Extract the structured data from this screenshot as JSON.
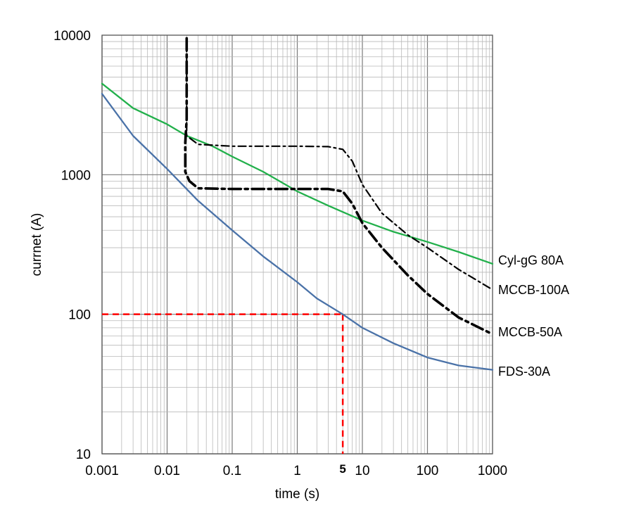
{
  "chart_data": {
    "type": "line",
    "title": "",
    "xlabel": "time (s)",
    "ylabel": "currnet (A)",
    "x_scale": "log",
    "y_scale": "log",
    "xlim": [
      0.001,
      1000
    ],
    "ylim": [
      10,
      10000
    ],
    "x_ticks": [
      "0.001",
      "0.01",
      "0.1",
      "1",
      "10",
      "100",
      "1000"
    ],
    "y_ticks": [
      "10",
      "100",
      "1000",
      "10000"
    ],
    "grid": true,
    "series": [
      {
        "name": "FDS-30A",
        "color": "#4a72a8",
        "style": "solid",
        "points": [
          [
            0.001,
            3800
          ],
          [
            0.003,
            1900
          ],
          [
            0.01,
            1100
          ],
          [
            0.03,
            650
          ],
          [
            0.1,
            400
          ],
          [
            0.3,
            260
          ],
          [
            1,
            170
          ],
          [
            2,
            130
          ],
          [
            5,
            100
          ],
          [
            10,
            80
          ],
          [
            30,
            62
          ],
          [
            100,
            49
          ],
          [
            300,
            43
          ],
          [
            1000,
            40
          ]
        ]
      },
      {
        "name": "Cyl-gG 80A",
        "color": "#22b04b",
        "style": "solid",
        "points": [
          [
            0.001,
            4500
          ],
          [
            0.003,
            3000
          ],
          [
            0.01,
            2300
          ],
          [
            0.02,
            1900
          ],
          [
            0.05,
            1600
          ],
          [
            0.1,
            1350
          ],
          [
            0.3,
            1050
          ],
          [
            1,
            760
          ],
          [
            3,
            600
          ],
          [
            10,
            470
          ],
          [
            30,
            390
          ],
          [
            100,
            330
          ],
          [
            300,
            280
          ],
          [
            1000,
            230
          ]
        ]
      },
      {
        "name": "MCCB-100A",
        "color": "#000000",
        "style": "dash-dot-thin",
        "points": [
          [
            0.02,
            9500
          ],
          [
            0.02,
            1900
          ],
          [
            0.03,
            1650
          ],
          [
            0.1,
            1600
          ],
          [
            1,
            1600
          ],
          [
            3,
            1590
          ],
          [
            5,
            1520
          ],
          [
            7,
            1250
          ],
          [
            10,
            850
          ],
          [
            20,
            530
          ],
          [
            50,
            370
          ],
          [
            100,
            300
          ],
          [
            300,
            210
          ],
          [
            1000,
            150
          ]
        ]
      },
      {
        "name": "MCCB-50A",
        "color": "#000000",
        "style": "dash-dot-thick",
        "points": [
          [
            0.02,
            9500
          ],
          [
            0.02,
            2500
          ],
          [
            0.019,
            1700
          ],
          [
            0.019,
            1050
          ],
          [
            0.022,
            900
          ],
          [
            0.03,
            800
          ],
          [
            0.1,
            790
          ],
          [
            1,
            790
          ],
          [
            3,
            790
          ],
          [
            5,
            760
          ],
          [
            7,
            620
          ],
          [
            10,
            450
          ],
          [
            20,
            300
          ],
          [
            50,
            190
          ],
          [
            100,
            140
          ],
          [
            300,
            95
          ],
          [
            1000,
            72
          ]
        ]
      }
    ],
    "annotations": [
      {
        "type": "reference-lines",
        "color": "#ff0000",
        "style": "dashed",
        "x": 5,
        "y": 100,
        "label": "5"
      }
    ]
  }
}
